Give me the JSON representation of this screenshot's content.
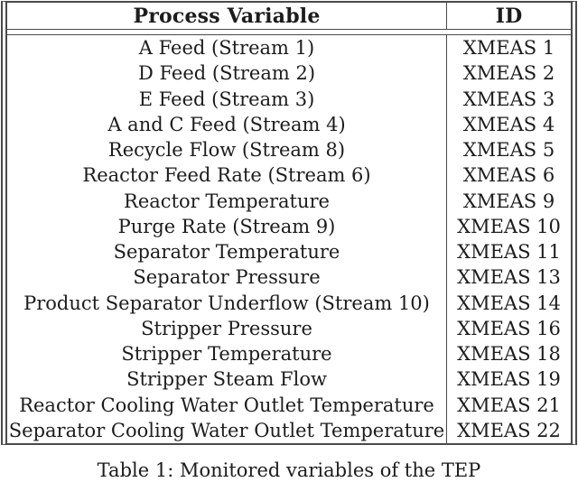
{
  "table": {
    "columns": [
      {
        "label": "Process Variable"
      },
      {
        "label": "ID"
      }
    ],
    "rows": [
      {
        "variable": "A Feed (Stream 1)",
        "id": "XMEAS 1"
      },
      {
        "variable": "D Feed (Stream 2)",
        "id": "XMEAS 2"
      },
      {
        "variable": "E Feed (Stream 3)",
        "id": "XMEAS 3"
      },
      {
        "variable": "A and C Feed (Stream 4)",
        "id": "XMEAS 4"
      },
      {
        "variable": "Recycle Flow (Stream 8)",
        "id": "XMEAS 5"
      },
      {
        "variable": "Reactor Feed Rate (Stream 6)",
        "id": "XMEAS 6"
      },
      {
        "variable": "Reactor Temperature",
        "id": "XMEAS 9"
      },
      {
        "variable": "Purge Rate (Stream 9)",
        "id": "XMEAS 10"
      },
      {
        "variable": "Separator Temperature",
        "id": "XMEAS 11"
      },
      {
        "variable": "Separator Pressure",
        "id": "XMEAS 13"
      },
      {
        "variable": "Product Separator Underflow (Stream 10)",
        "id": "XMEAS 14"
      },
      {
        "variable": "Stripper Pressure",
        "id": "XMEAS 16"
      },
      {
        "variable": "Stripper Temperature",
        "id": "XMEAS 18"
      },
      {
        "variable": "Stripper Steam Flow",
        "id": "XMEAS 19"
      },
      {
        "variable": "Reactor Cooling Water Outlet Temperature",
        "id": "XMEAS 21"
      },
      {
        "variable": "Separator Cooling Water Outlet Temperature",
        "id": "XMEAS 22"
      }
    ]
  },
  "caption": "Table 1: Monitored variables of the TEP",
  "colors": {
    "rule": "#4a4a4a",
    "text": "#1c1c1c",
    "background": "#ffffff"
  }
}
